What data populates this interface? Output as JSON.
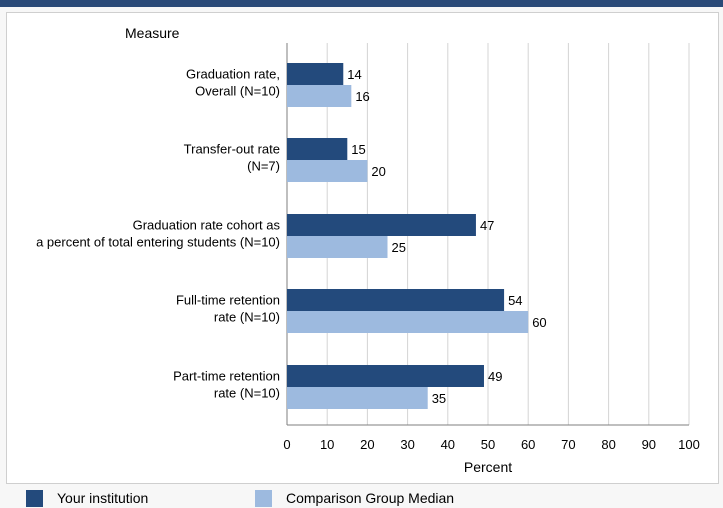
{
  "chart_data": {
    "type": "bar",
    "orientation": "horizontal",
    "y_axis_title": "Measure",
    "xlabel": "Percent",
    "xlim": [
      0,
      100
    ],
    "xticks": [
      0,
      10,
      20,
      30,
      40,
      50,
      60,
      70,
      80,
      90,
      100
    ],
    "grid": "vertical",
    "categories": [
      [
        "Graduation rate,",
        "Overall (N=10)"
      ],
      [
        "Transfer-out rate",
        "(N=7)"
      ],
      [
        "Graduation rate cohort as",
        "a percent of total entering students (N=10)"
      ],
      [
        "Full-time retention",
        "rate (N=10)"
      ],
      [
        "Part-time retention",
        "rate (N=10)"
      ]
    ],
    "series": [
      {
        "name": "Your institution",
        "color": "#234a7c",
        "values": [
          14,
          15,
          47,
          54,
          49
        ]
      },
      {
        "name": "Comparison Group Median",
        "color": "#9dbadf",
        "values": [
          16,
          20,
          25,
          60,
          35
        ]
      }
    ],
    "legend": "bottom"
  }
}
